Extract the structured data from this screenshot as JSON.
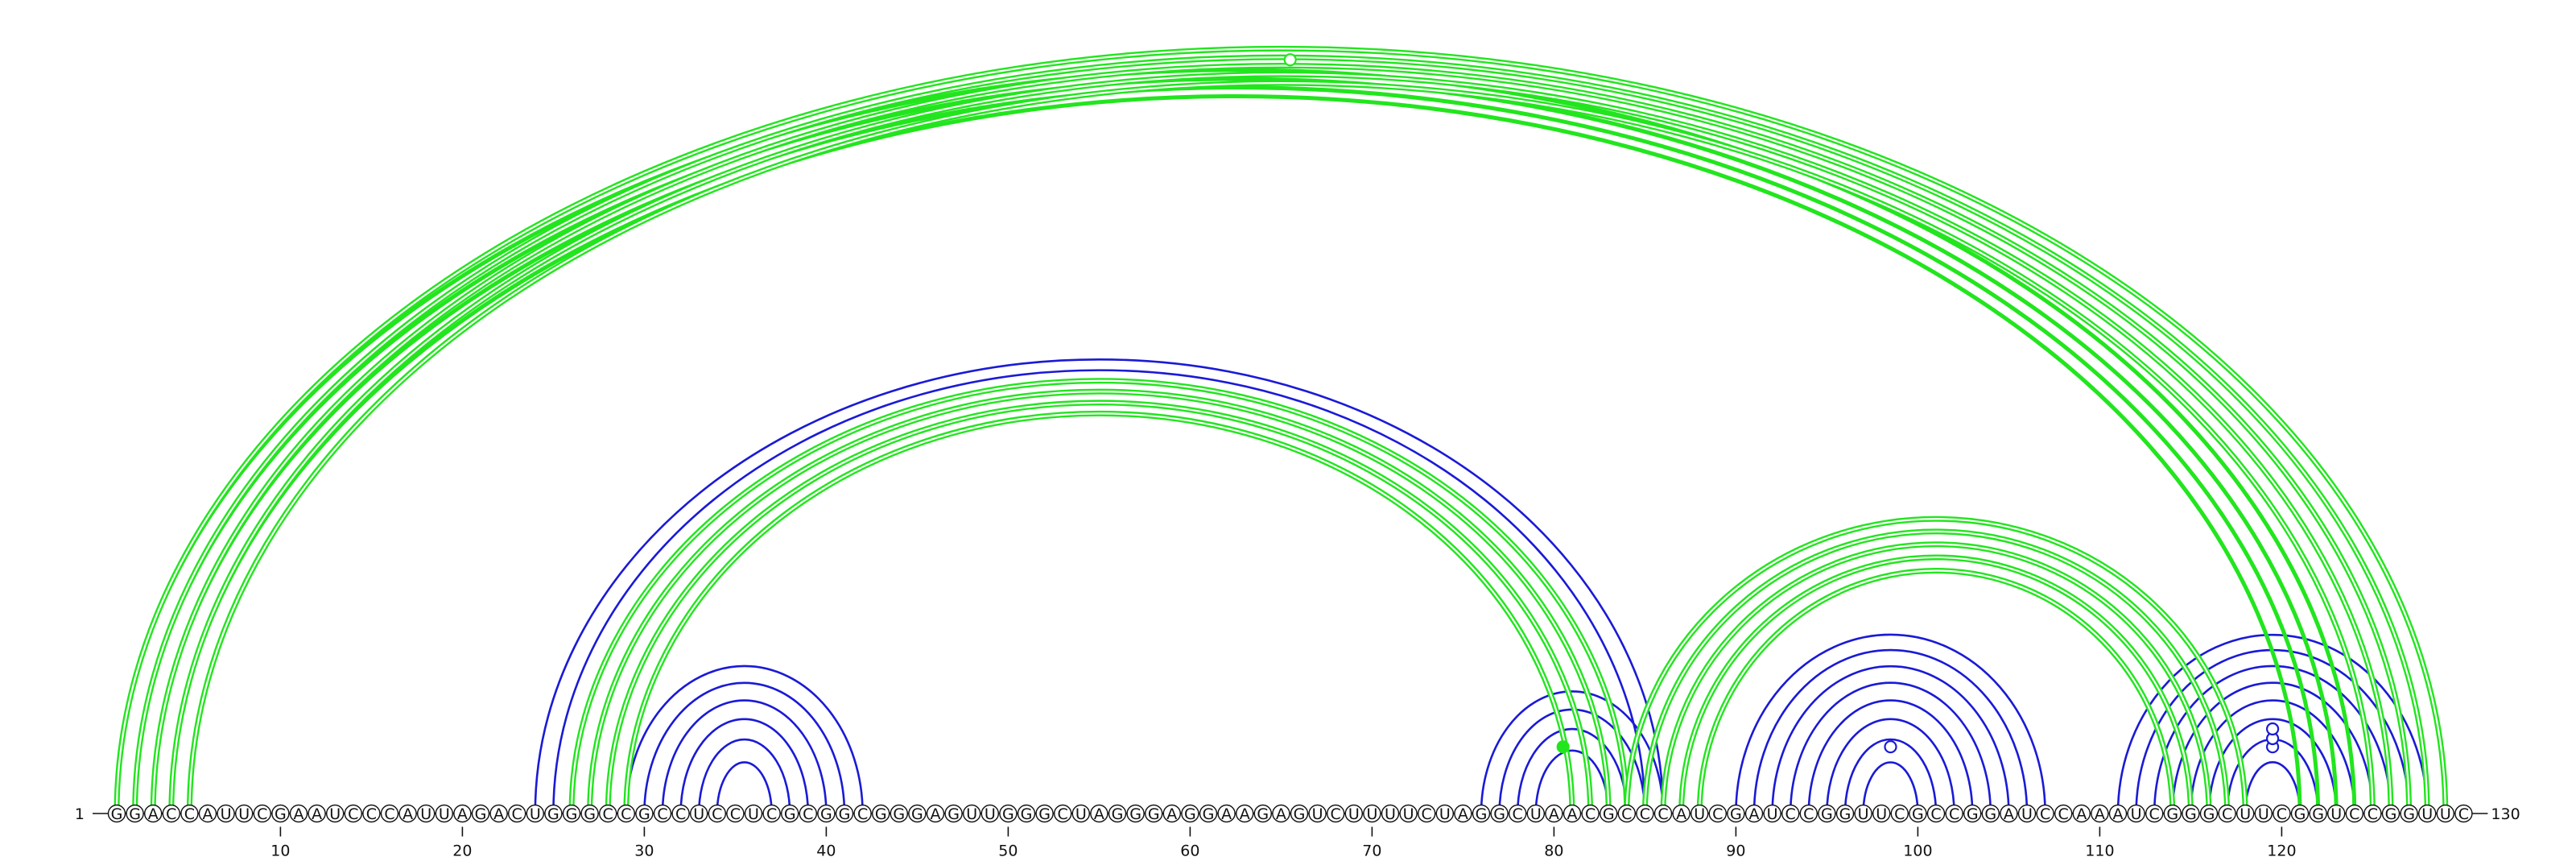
{
  "sequence": "GGACCAUUCGAAUCCCAUUAGACUGGGCCGCCUCCUCGCGGCGGGAGUUGGGCUAGGGAGGAAGAGUCUUUUCUAGGCUAACGCCCAUCGAUCCGGUUCGCCGGAUCCAAAUCGGGCUUCGGUCCGGUUC",
  "start_label": "1",
  "end_label": "130",
  "ticks": [
    10,
    20,
    30,
    40,
    50,
    60,
    70,
    80,
    90,
    100,
    110,
    120
  ],
  "colors": {
    "green": "#22e51e",
    "blue": "#1a1ad6",
    "axis": "#111111"
  },
  "arcs": {
    "green_double": [
      [
        1,
        129
      ],
      [
        2,
        128
      ],
      [
        3,
        127
      ],
      [
        4,
        126
      ],
      [
        5,
        125
      ],
      [
        26,
        84
      ],
      [
        27,
        83
      ],
      [
        28,
        82
      ],
      [
        29,
        81
      ],
      [
        84,
        118
      ],
      [
        85,
        117
      ],
      [
        86,
        116
      ],
      [
        87,
        115
      ],
      [
        88,
        114
      ]
    ],
    "green_thick": [
      [
        1,
        124
      ],
      [
        2,
        123
      ],
      [
        3,
        122
      ],
      [
        4,
        121
      ]
    ],
    "blue_single": [
      [
        24,
        86
      ],
      [
        25,
        85
      ],
      [
        29,
        42
      ],
      [
        30,
        41
      ],
      [
        31,
        40
      ],
      [
        32,
        39
      ],
      [
        33,
        38
      ],
      [
        34,
        37
      ],
      [
        76,
        86
      ],
      [
        77,
        85
      ],
      [
        78,
        84
      ],
      [
        79,
        83
      ],
      [
        90,
        107
      ],
      [
        91,
        106
      ],
      [
        92,
        105
      ],
      [
        93,
        104
      ],
      [
        94,
        103
      ],
      [
        95,
        102
      ],
      [
        96,
        101
      ],
      [
        97,
        100
      ],
      [
        111,
        128
      ],
      [
        112,
        127
      ],
      [
        113,
        126
      ],
      [
        114,
        125
      ],
      [
        115,
        124
      ],
      [
        116,
        123
      ],
      [
        117,
        122
      ],
      [
        118,
        121
      ]
    ]
  },
  "markers": [
    {
      "pos": 65.5,
      "level": 0.985,
      "style": "hollow",
      "color": "green"
    },
    {
      "pos": 80.5,
      "level": 0.38,
      "style": "filled",
      "color": "green"
    },
    {
      "pos": 98.5,
      "level": 0.38,
      "style": "hollow",
      "color": "blue"
    },
    {
      "pos": 119.5,
      "level": 0.38,
      "style": "hollow",
      "color": "blue"
    },
    {
      "pos": 119.5,
      "level": 0.55,
      "style": "hollow",
      "color": "blue"
    },
    {
      "pos": 119.5,
      "level": 0.75,
      "style": "hollow",
      "color": "blue"
    }
  ]
}
